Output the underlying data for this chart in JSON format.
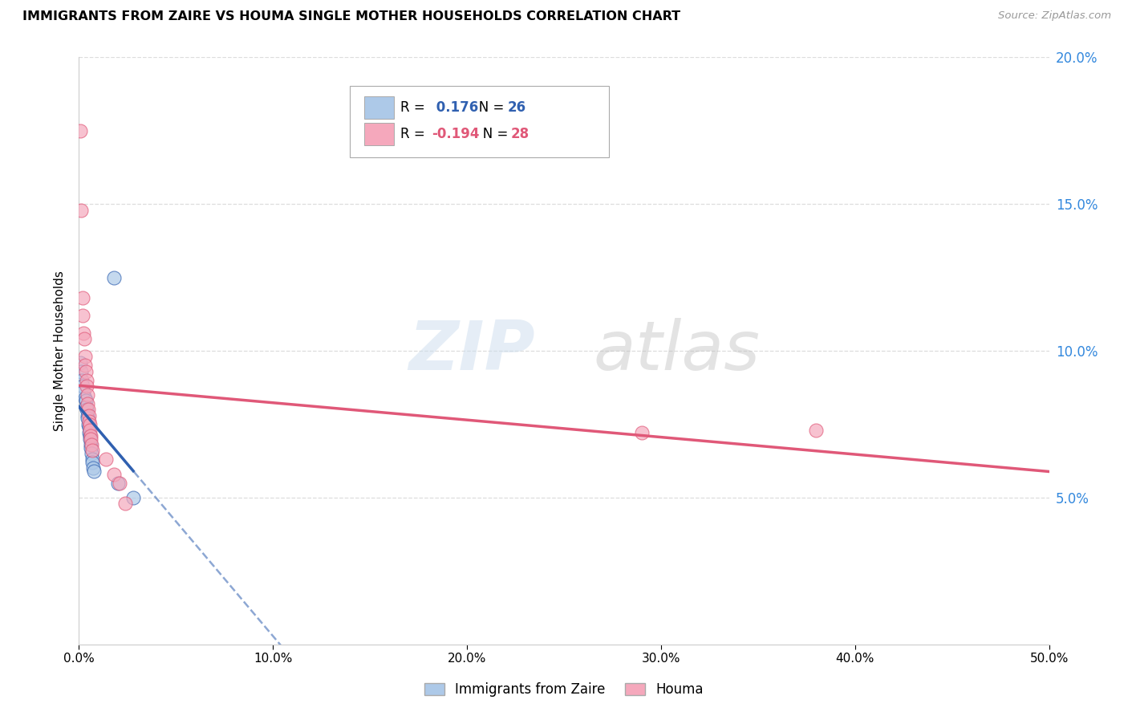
{
  "title": "IMMIGRANTS FROM ZAIRE VS HOUMA SINGLE MOTHER HOUSEHOLDS CORRELATION CHART",
  "source": "Source: ZipAtlas.com",
  "ylabel": "Single Mother Households",
  "xlim": [
    0,
    0.5
  ],
  "ylim": [
    0,
    0.2
  ],
  "xtick_vals": [
    0.0,
    0.1,
    0.2,
    0.3,
    0.4,
    0.5
  ],
  "xtick_labels": [
    "0.0%",
    "10.0%",
    "20.0%",
    "30.0%",
    "40.0%",
    "50.0%"
  ],
  "ytick_vals": [
    0.05,
    0.1,
    0.15,
    0.2
  ],
  "ytick_labels": [
    "5.0%",
    "10.0%",
    "15.0%",
    "20.0%"
  ],
  "blue_r": 0.176,
  "blue_n": 26,
  "pink_r": -0.194,
  "pink_n": 28,
  "blue_color": "#adc9e8",
  "pink_color": "#f5a8bc",
  "blue_line_color": "#3060b0",
  "pink_line_color": "#e05878",
  "blue_scatter": [
    [
      0.0005,
      0.096
    ],
    [
      0.001,
      0.093
    ],
    [
      0.0015,
      0.09
    ],
    [
      0.002,
      0.088
    ],
    [
      0.0025,
      0.086
    ],
    [
      0.003,
      0.084
    ],
    [
      0.0035,
      0.083
    ],
    [
      0.0035,
      0.081
    ],
    [
      0.004,
      0.08
    ],
    [
      0.0042,
      0.078
    ],
    [
      0.0045,
      0.077
    ],
    [
      0.0048,
      0.075
    ],
    [
      0.005,
      0.074
    ],
    [
      0.0052,
      0.072
    ],
    [
      0.0055,
      0.071
    ],
    [
      0.0058,
      0.07
    ],
    [
      0.006,
      0.068
    ],
    [
      0.0062,
      0.067
    ],
    [
      0.0065,
      0.065
    ],
    [
      0.0068,
      0.063
    ],
    [
      0.007,
      0.062
    ],
    [
      0.0072,
      0.06
    ],
    [
      0.0075,
      0.059
    ],
    [
      0.018,
      0.125
    ],
    [
      0.02,
      0.055
    ],
    [
      0.028,
      0.05
    ]
  ],
  "pink_scatter": [
    [
      0.0005,
      0.175
    ],
    [
      0.001,
      0.148
    ],
    [
      0.0018,
      0.118
    ],
    [
      0.002,
      0.112
    ],
    [
      0.0025,
      0.106
    ],
    [
      0.0028,
      0.104
    ],
    [
      0.003,
      0.098
    ],
    [
      0.0032,
      0.095
    ],
    [
      0.0035,
      0.093
    ],
    [
      0.0038,
      0.09
    ],
    [
      0.004,
      0.088
    ],
    [
      0.0042,
      0.085
    ],
    [
      0.0045,
      0.082
    ],
    [
      0.0048,
      0.08
    ],
    [
      0.005,
      0.078
    ],
    [
      0.0052,
      0.076
    ],
    [
      0.0055,
      0.075
    ],
    [
      0.0058,
      0.073
    ],
    [
      0.006,
      0.071
    ],
    [
      0.0062,
      0.07
    ],
    [
      0.0065,
      0.068
    ],
    [
      0.007,
      0.066
    ],
    [
      0.014,
      0.063
    ],
    [
      0.018,
      0.058
    ],
    [
      0.021,
      0.055
    ],
    [
      0.024,
      0.048
    ],
    [
      0.29,
      0.072
    ],
    [
      0.38,
      0.073
    ]
  ],
  "watermark_zip": "ZIP",
  "watermark_atlas": "atlas",
  "background_color": "#ffffff",
  "grid_color": "#dddddd"
}
